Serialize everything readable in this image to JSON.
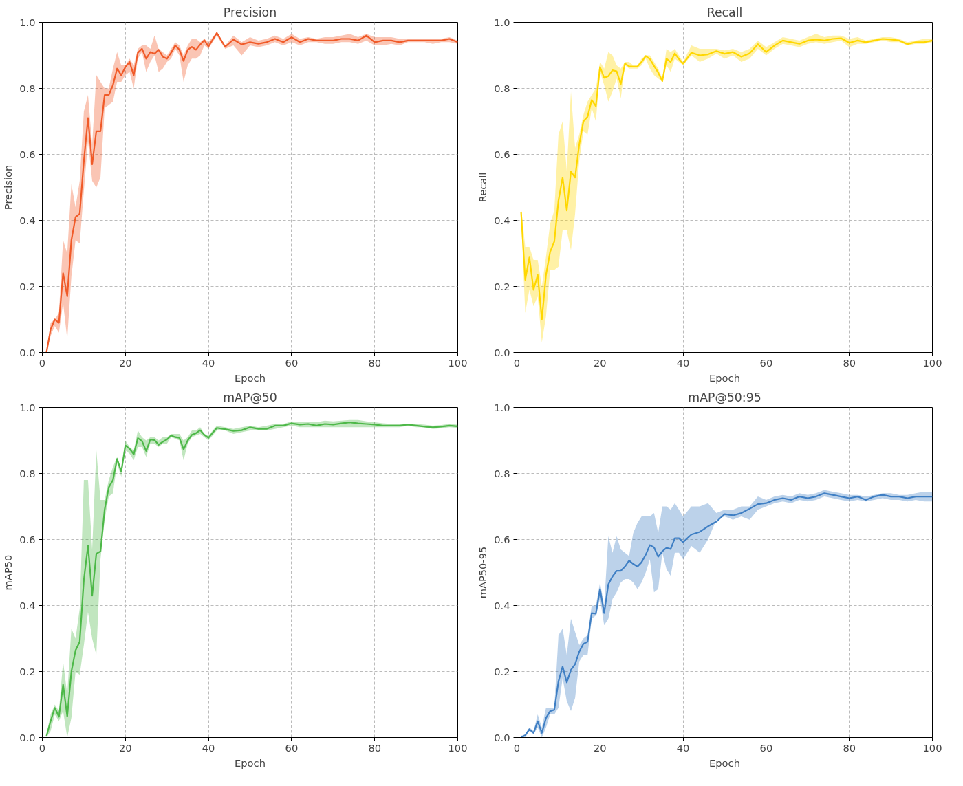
{
  "chart_data": [
    {
      "type": "line",
      "title": "Precision",
      "xlabel": "Epoch",
      "ylabel": "Precision",
      "grid": true,
      "x": [
        1,
        2,
        3,
        4,
        5,
        6,
        7,
        8,
        9,
        10,
        11,
        12,
        13,
        14,
        15,
        16,
        17,
        18,
        19,
        20,
        21,
        22,
        23,
        24,
        25,
        26,
        27,
        28,
        29,
        30,
        31,
        32,
        33,
        34,
        35,
        36,
        37,
        38,
        39,
        40,
        42,
        44,
        46,
        48,
        50,
        52,
        54,
        56,
        58,
        60,
        62,
        64,
        66,
        68,
        70,
        72,
        74,
        76,
        78,
        80,
        82,
        84,
        86,
        88,
        90,
        92,
        94,
        96,
        98,
        100
      ],
      "xlim": [
        0,
        100
      ],
      "xticks": [
        0,
        20,
        40,
        60,
        80,
        100
      ],
      "ylim": [
        0,
        1
      ],
      "yticks": [
        {
          "value": 0,
          "label": "0.0"
        },
        {
          "value": 0.2,
          "label": "0.2"
        },
        {
          "value": 0.4,
          "label": "0.4"
        },
        {
          "value": 0.6,
          "label": "0.6"
        },
        {
          "value": 0.8,
          "label": "0.8"
        },
        {
          "value": 1,
          "label": "1.0"
        }
      ],
      "series": [
        {
          "color": "#f05a28",
          "line_style": "solid",
          "values": [
            0.0,
            0.07,
            0.1,
            0.09,
            0.24,
            0.17,
            0.34,
            0.41,
            0.42,
            0.58,
            0.71,
            0.57,
            0.67,
            0.67,
            0.78,
            0.78,
            0.81,
            0.86,
            0.84,
            0.865,
            0.88,
            0.84,
            0.908,
            0.92,
            0.89,
            0.91,
            0.905,
            0.917,
            0.896,
            0.89,
            0.908,
            0.93,
            0.917,
            0.883,
            0.917,
            0.926,
            0.917,
            0.933,
            0.946,
            0.927,
            0.968,
            0.926,
            0.948,
            0.933,
            0.94,
            0.935,
            0.94,
            0.95,
            0.94,
            0.955,
            0.94,
            0.95,
            0.945,
            0.945,
            0.945,
            0.95,
            0.95,
            0.945,
            0.96,
            0.94,
            0.945,
            0.945,
            0.94,
            0.945,
            0.945,
            0.945,
            0.945,
            0.945,
            0.95,
            0.94
          ],
          "lower": [
            0,
            0.05,
            0.08,
            0.06,
            0.15,
            0.04,
            0.23,
            0.34,
            0.33,
            0.49,
            0.64,
            0.52,
            0.5,
            0.53,
            0.74,
            0.75,
            0.76,
            0.82,
            0.82,
            0.84,
            0.85,
            0.8,
            0.89,
            0.91,
            0.85,
            0.88,
            0.9,
            0.85,
            0.86,
            0.88,
            0.89,
            0.92,
            0.9,
            0.82,
            0.87,
            0.89,
            0.89,
            0.9,
            0.93,
            0.92,
            0.96,
            0.92,
            0.93,
            0.9,
            0.93,
            0.925,
            0.93,
            0.94,
            0.93,
            0.94,
            0.93,
            0.94,
            0.94,
            0.935,
            0.935,
            0.94,
            0.94,
            0.935,
            0.945,
            0.93,
            0.93,
            0.935,
            0.93,
            0.94,
            0.94,
            0.94,
            0.935,
            0.94,
            0.94,
            0.935
          ],
          "upper": [
            0,
            0.09,
            0.1,
            0.12,
            0.34,
            0.3,
            0.51,
            0.44,
            0.52,
            0.73,
            0.78,
            0.63,
            0.84,
            0.82,
            0.8,
            0.8,
            0.86,
            0.91,
            0.87,
            0.87,
            0.89,
            0.87,
            0.92,
            0.93,
            0.93,
            0.92,
            0.96,
            0.92,
            0.91,
            0.9,
            0.92,
            0.94,
            0.93,
            0.9,
            0.93,
            0.95,
            0.95,
            0.94,
            0.95,
            0.94,
            0.97,
            0.93,
            0.96,
            0.94,
            0.955,
            0.945,
            0.95,
            0.96,
            0.95,
            0.965,
            0.95,
            0.955,
            0.95,
            0.955,
            0.955,
            0.96,
            0.965,
            0.955,
            0.965,
            0.955,
            0.955,
            0.955,
            0.95,
            0.95,
            0.95,
            0.95,
            0.95,
            0.95,
            0.955,
            0.945
          ]
        }
      ]
    },
    {
      "type": "line",
      "title": "Recall",
      "xlabel": "Epoch",
      "ylabel": "Recall",
      "grid": true,
      "x": [
        1,
        2,
        3,
        4,
        5,
        6,
        7,
        8,
        9,
        10,
        11,
        12,
        13,
        14,
        15,
        16,
        17,
        18,
        19,
        20,
        21,
        22,
        23,
        24,
        25,
        26,
        27,
        28,
        29,
        30,
        31,
        32,
        33,
        34,
        35,
        36,
        37,
        38,
        39,
        40,
        42,
        44,
        46,
        48,
        50,
        52,
        54,
        56,
        58,
        60,
        62,
        64,
        66,
        68,
        70,
        72,
        74,
        76,
        78,
        80,
        82,
        84,
        86,
        88,
        90,
        92,
        94,
        96,
        98,
        100
      ],
      "xlim": [
        0,
        100
      ],
      "xticks": [
        0,
        20,
        40,
        60,
        80,
        100
      ],
      "ylim": [
        0,
        1
      ],
      "yticks": [
        {
          "value": 0,
          "label": "0.0"
        },
        {
          "value": 0.2,
          "label": "0.2"
        },
        {
          "value": 0.4,
          "label": "0.4"
        },
        {
          "value": 0.6,
          "label": "0.6"
        },
        {
          "value": 0.8,
          "label": "0.8"
        },
        {
          "value": 1,
          "label": "1.0"
        }
      ],
      "series": [
        {
          "color": "#ffd700",
          "line_style": "solid",
          "values": [
            0.426,
            0.22,
            0.288,
            0.19,
            0.235,
            0.1,
            0.235,
            0.305,
            0.336,
            0.46,
            0.53,
            0.43,
            0.548,
            0.53,
            0.63,
            0.7,
            0.714,
            0.765,
            0.746,
            0.865,
            0.832,
            0.837,
            0.855,
            0.852,
            0.813,
            0.875,
            0.867,
            0.866,
            0.866,
            0.88,
            0.898,
            0.889,
            0.868,
            0.848,
            0.822,
            0.89,
            0.88,
            0.906,
            0.889,
            0.875,
            0.908,
            0.9,
            0.903,
            0.913,
            0.905,
            0.91,
            0.896,
            0.906,
            0.934,
            0.91,
            0.93,
            0.945,
            0.94,
            0.935,
            0.945,
            0.948,
            0.945,
            0.95,
            0.952,
            0.938,
            0.945,
            0.94,
            0.945,
            0.95,
            0.948,
            0.945,
            0.934,
            0.94,
            0.94,
            0.945
          ],
          "lower": [
            0.41,
            0.12,
            0.19,
            0.14,
            0.17,
            0.03,
            0.11,
            0.25,
            0.25,
            0.26,
            0.37,
            0.37,
            0.31,
            0.42,
            0.58,
            0.67,
            0.66,
            0.74,
            0.7,
            0.85,
            0.81,
            0.76,
            0.79,
            0.83,
            0.77,
            0.87,
            0.86,
            0.86,
            0.86,
            0.87,
            0.89,
            0.86,
            0.84,
            0.83,
            0.82,
            0.87,
            0.85,
            0.89,
            0.88,
            0.87,
            0.9,
            0.88,
            0.89,
            0.905,
            0.89,
            0.9,
            0.88,
            0.89,
            0.92,
            0.9,
            0.92,
            0.935,
            0.93,
            0.925,
            0.935,
            0.94,
            0.935,
            0.94,
            0.945,
            0.925,
            0.935,
            0.935,
            0.94,
            0.945,
            0.94,
            0.94,
            0.93,
            0.935,
            0.935,
            0.94
          ],
          "upper": [
            0.44,
            0.32,
            0.32,
            0.28,
            0.28,
            0.2,
            0.29,
            0.39,
            0.43,
            0.66,
            0.7,
            0.55,
            0.79,
            0.62,
            0.66,
            0.72,
            0.76,
            0.78,
            0.8,
            0.88,
            0.86,
            0.91,
            0.9,
            0.87,
            0.86,
            0.88,
            0.88,
            0.87,
            0.87,
            0.89,
            0.9,
            0.9,
            0.88,
            0.86,
            0.83,
            0.92,
            0.91,
            0.92,
            0.9,
            0.88,
            0.93,
            0.92,
            0.92,
            0.92,
            0.915,
            0.92,
            0.91,
            0.92,
            0.945,
            0.925,
            0.94,
            0.955,
            0.95,
            0.945,
            0.955,
            0.965,
            0.955,
            0.96,
            0.96,
            0.95,
            0.955,
            0.945,
            0.95,
            0.955,
            0.955,
            0.95,
            0.94,
            0.945,
            0.95,
            0.95
          ]
        }
      ]
    },
    {
      "type": "line",
      "title": "mAP@50",
      "xlabel": "Epoch",
      "ylabel": "mAP50",
      "grid": true,
      "x": [
        1,
        2,
        3,
        4,
        5,
        6,
        7,
        8,
        9,
        10,
        11,
        12,
        13,
        14,
        15,
        16,
        17,
        18,
        19,
        20,
        21,
        22,
        23,
        24,
        25,
        26,
        27,
        28,
        29,
        30,
        31,
        32,
        33,
        34,
        35,
        36,
        37,
        38,
        39,
        40,
        42,
        44,
        46,
        48,
        50,
        52,
        54,
        56,
        58,
        60,
        62,
        64,
        66,
        68,
        70,
        72,
        74,
        76,
        78,
        80,
        82,
        84,
        86,
        88,
        90,
        92,
        94,
        96,
        98,
        100
      ],
      "xlim": [
        0,
        100
      ],
      "xticks": [
        0,
        20,
        40,
        60,
        80,
        100
      ],
      "ylim": [
        0,
        1
      ],
      "yticks": [
        {
          "value": 0,
          "label": "0.0"
        },
        {
          "value": 0.2,
          "label": "0.2"
        },
        {
          "value": 0.4,
          "label": "0.4"
        },
        {
          "value": 0.6,
          "label": "0.6"
        },
        {
          "value": 0.8,
          "label": "0.8"
        },
        {
          "value": 1,
          "label": "1.0"
        }
      ],
      "series": [
        {
          "color": "#4db848",
          "line_style": "solid",
          "values": [
            0.004,
            0.05,
            0.09,
            0.063,
            0.16,
            0.064,
            0.2,
            0.264,
            0.29,
            0.478,
            0.582,
            0.43,
            0.557,
            0.564,
            0.69,
            0.758,
            0.78,
            0.844,
            0.806,
            0.885,
            0.875,
            0.858,
            0.907,
            0.898,
            0.868,
            0.903,
            0.901,
            0.887,
            0.896,
            0.903,
            0.915,
            0.91,
            0.908,
            0.873,
            0.9,
            0.917,
            0.922,
            0.931,
            0.917,
            0.908,
            0.938,
            0.934,
            0.929,
            0.931,
            0.94,
            0.935,
            0.935,
            0.945,
            0.945,
            0.952,
            0.948,
            0.95,
            0.945,
            0.95,
            0.948,
            0.952,
            0.955,
            0.952,
            0.95,
            0.948,
            0.945,
            0.945,
            0.945,
            0.948,
            0.945,
            0.942,
            0.94,
            0.942,
            0.945,
            0.943
          ],
          "lower": [
            0,
            0.02,
            0.07,
            0.05,
            0.08,
            0,
            0.06,
            0.2,
            0.19,
            0.28,
            0.38,
            0.3,
            0.25,
            0.54,
            0.66,
            0.73,
            0.74,
            0.83,
            0.79,
            0.87,
            0.86,
            0.84,
            0.88,
            0.88,
            0.85,
            0.89,
            0.89,
            0.88,
            0.89,
            0.89,
            0.91,
            0.905,
            0.9,
            0.84,
            0.89,
            0.91,
            0.915,
            0.92,
            0.91,
            0.9,
            0.93,
            0.93,
            0.92,
            0.925,
            0.93,
            0.93,
            0.93,
            0.935,
            0.94,
            0.945,
            0.94,
            0.94,
            0.94,
            0.94,
            0.94,
            0.94,
            0.94,
            0.94,
            0.94,
            0.94,
            0.94,
            0.94,
            0.94,
            0.945,
            0.94,
            0.94,
            0.935,
            0.937,
            0.94,
            0.938
          ],
          "upper": [
            0.01,
            0.07,
            0.1,
            0.08,
            0.23,
            0.13,
            0.33,
            0.3,
            0.39,
            0.78,
            0.78,
            0.57,
            0.87,
            0.72,
            0.72,
            0.78,
            0.82,
            0.85,
            0.81,
            0.9,
            0.88,
            0.87,
            0.93,
            0.91,
            0.9,
            0.91,
            0.91,
            0.9,
            0.91,
            0.91,
            0.92,
            0.92,
            0.92,
            0.9,
            0.91,
            0.93,
            0.93,
            0.94,
            0.92,
            0.915,
            0.945,
            0.94,
            0.935,
            0.94,
            0.945,
            0.94,
            0.945,
            0.95,
            0.95,
            0.958,
            0.955,
            0.955,
            0.955,
            0.96,
            0.958,
            0.96,
            0.962,
            0.962,
            0.958,
            0.955,
            0.952,
            0.95,
            0.95,
            0.95,
            0.95,
            0.948,
            0.945,
            0.947,
            0.95,
            0.948
          ]
        }
      ]
    },
    {
      "type": "line",
      "title": "mAP@50:95",
      "xlabel": "Epoch",
      "ylabel": "mAP50-95",
      "grid": true,
      "x": [
        1,
        2,
        3,
        4,
        5,
        6,
        7,
        8,
        9,
        10,
        11,
        12,
        13,
        14,
        15,
        16,
        17,
        18,
        19,
        20,
        21,
        22,
        23,
        24,
        25,
        26,
        27,
        28,
        29,
        30,
        31,
        32,
        33,
        34,
        35,
        36,
        37,
        38,
        39,
        40,
        42,
        44,
        46,
        48,
        50,
        52,
        54,
        56,
        58,
        60,
        62,
        64,
        66,
        68,
        70,
        72,
        74,
        76,
        78,
        80,
        82,
        84,
        86,
        88,
        90,
        92,
        94,
        96,
        98,
        100
      ],
      "xlim": [
        0,
        100
      ],
      "xticks": [
        0,
        20,
        40,
        60,
        80,
        100
      ],
      "ylim": [
        0,
        1
      ],
      "yticks": [
        {
          "value": 0,
          "label": "0.0"
        },
        {
          "value": 0.2,
          "label": "0.2"
        },
        {
          "value": 0.4,
          "label": "0.4"
        },
        {
          "value": 0.6,
          "label": "0.6"
        },
        {
          "value": 0.8,
          "label": "0.8"
        },
        {
          "value": 1,
          "label": "1.0"
        }
      ],
      "series": [
        {
          "color": "#3f7fc4",
          "line_style": "solid",
          "values": [
            0,
            0.007,
            0.025,
            0.014,
            0.049,
            0.014,
            0.059,
            0.08,
            0.084,
            0.17,
            0.215,
            0.167,
            0.205,
            0.222,
            0.26,
            0.284,
            0.29,
            0.377,
            0.375,
            0.45,
            0.377,
            0.464,
            0.488,
            0.505,
            0.505,
            0.518,
            0.536,
            0.526,
            0.518,
            0.531,
            0.554,
            0.583,
            0.576,
            0.548,
            0.564,
            0.575,
            0.571,
            0.604,
            0.604,
            0.592,
            0.615,
            0.623,
            0.64,
            0.654,
            0.677,
            0.673,
            0.68,
            0.693,
            0.707,
            0.71,
            0.72,
            0.725,
            0.72,
            0.73,
            0.725,
            0.73,
            0.74,
            0.735,
            0.73,
            0.725,
            0.73,
            0.72,
            0.73,
            0.735,
            0.73,
            0.73,
            0.725,
            0.73,
            0.73,
            0.73
          ],
          "lower": [
            0,
            0,
            0.02,
            0.01,
            0.03,
            0,
            0.03,
            0.07,
            0.07,
            0.09,
            0.18,
            0.11,
            0.08,
            0.12,
            0.23,
            0.25,
            0.25,
            0.36,
            0.37,
            0.42,
            0.34,
            0.36,
            0.42,
            0.44,
            0.47,
            0.48,
            0.48,
            0.47,
            0.45,
            0.47,
            0.5,
            0.54,
            0.44,
            0.45,
            0.56,
            0.51,
            0.49,
            0.56,
            0.56,
            0.54,
            0.58,
            0.56,
            0.6,
            0.66,
            0.67,
            0.66,
            0.67,
            0.66,
            0.69,
            0.7,
            0.71,
            0.715,
            0.71,
            0.72,
            0.715,
            0.72,
            0.73,
            0.725,
            0.72,
            0.715,
            0.72,
            0.715,
            0.72,
            0.725,
            0.72,
            0.72,
            0.715,
            0.72,
            0.715,
            0.715
          ],
          "upper": [
            0.005,
            0.01,
            0.03,
            0.02,
            0.07,
            0.03,
            0.09,
            0.09,
            0.09,
            0.31,
            0.33,
            0.25,
            0.36,
            0.32,
            0.28,
            0.3,
            0.31,
            0.4,
            0.4,
            0.47,
            0.4,
            0.61,
            0.56,
            0.61,
            0.57,
            0.56,
            0.55,
            0.62,
            0.65,
            0.67,
            0.67,
            0.67,
            0.68,
            0.62,
            0.7,
            0.7,
            0.69,
            0.71,
            0.69,
            0.67,
            0.7,
            0.7,
            0.71,
            0.68,
            0.69,
            0.69,
            0.7,
            0.7,
            0.73,
            0.72,
            0.73,
            0.735,
            0.73,
            0.74,
            0.735,
            0.74,
            0.75,
            0.745,
            0.74,
            0.735,
            0.735,
            0.73,
            0.735,
            0.74,
            0.74,
            0.735,
            0.735,
            0.74,
            0.745,
            0.745
          ]
        }
      ]
    }
  ]
}
